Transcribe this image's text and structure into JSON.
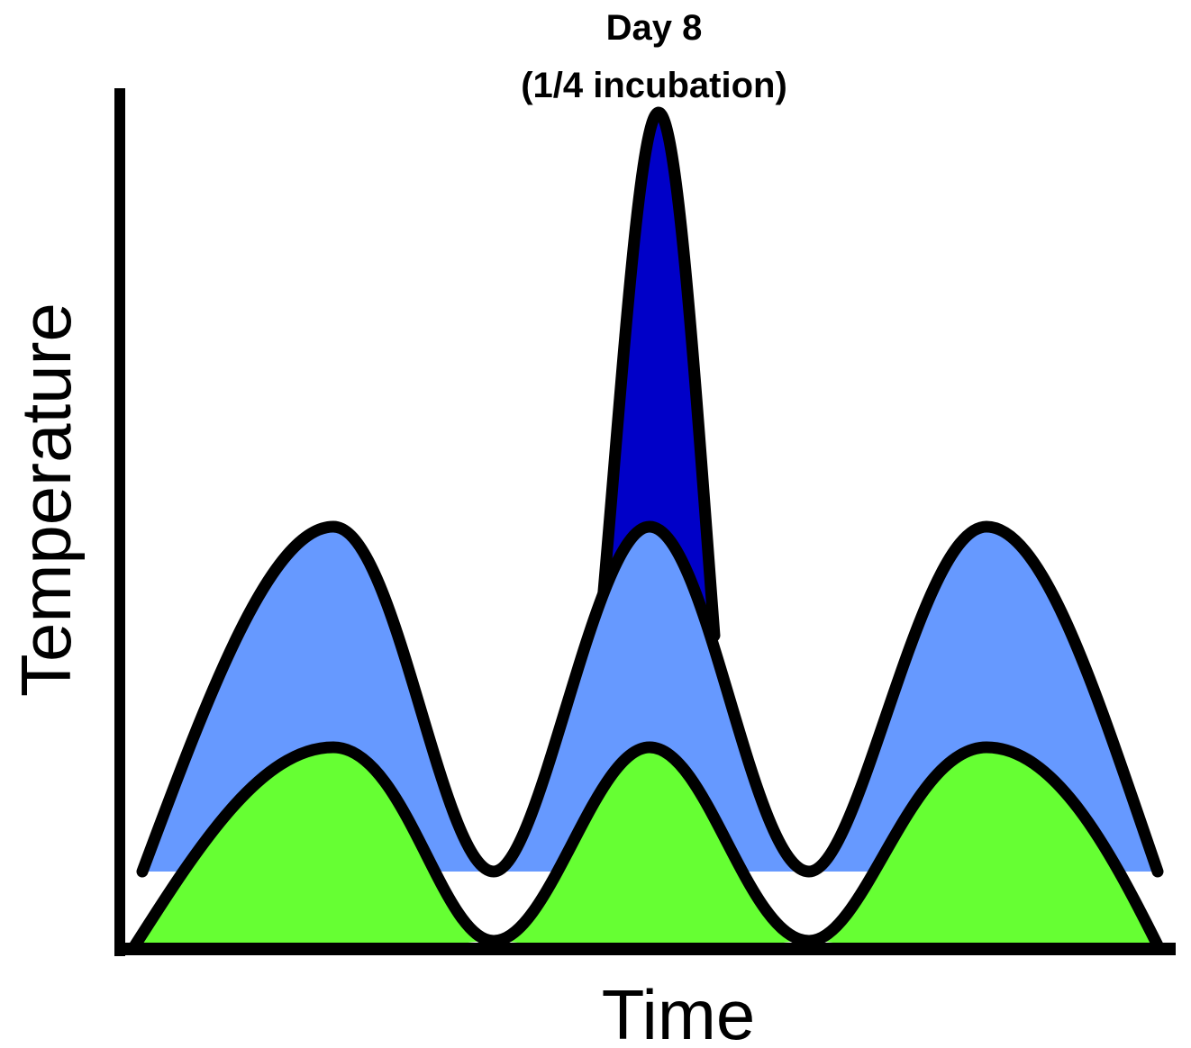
{
  "title": {
    "line1": "Day 8",
    "line2": "(1/4 incubation)"
  },
  "axes": {
    "ylabel": "Temperature",
    "xlabel": "Time"
  },
  "colors": {
    "background": "#ffffff",
    "outline": "#000000",
    "peak_fill": "#0000c8",
    "upper_band_fill": "#6699ff",
    "lower_band_fill": "#66ff33"
  },
  "bands": [
    {
      "name": "upper-temperature-band",
      "color_key": "upper_band_fill",
      "peaks": 3
    },
    {
      "name": "lower-temperature-band",
      "color_key": "lower_band_fill",
      "peaks": 3
    },
    {
      "name": "day-8-peak",
      "color_key": "peak_fill",
      "peaks": 1
    }
  ]
}
